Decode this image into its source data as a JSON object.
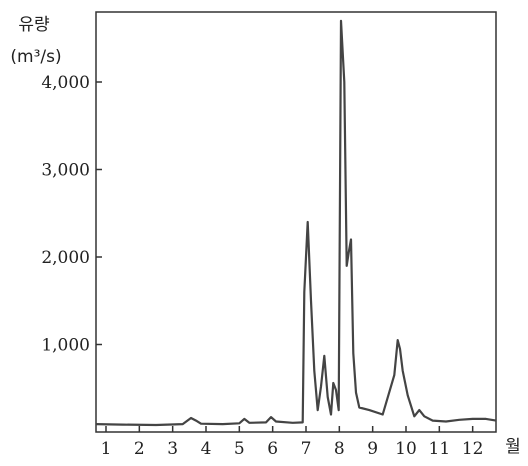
{
  "chart_data": {
    "type": "line",
    "ylabel_line1": "유량",
    "ylabel_line2": "(m³/s)",
    "xlabel": "월",
    "xlim": [
      0.7,
      12.7
    ],
    "ylim": [
      0,
      4800
    ],
    "xticks": [
      1,
      2,
      3,
      4,
      5,
      6,
      7,
      8,
      9,
      10,
      11,
      12
    ],
    "yticks": [
      1000,
      2000,
      3000,
      4000
    ],
    "ytick_labels": [
      "1,000",
      "2,000",
      "3,000",
      "4,000"
    ],
    "grid": false,
    "series": [
      {
        "x": [
          0.7,
          1.5,
          2.5,
          3.3,
          3.55,
          3.7,
          3.85,
          4.5,
          5.0,
          5.15,
          5.3,
          5.8,
          5.95,
          6.1,
          6.6,
          6.9,
          6.95,
          7.05,
          7.15,
          7.25,
          7.35,
          7.45,
          7.55,
          7.65,
          7.75,
          7.82,
          7.9,
          7.98,
          8.05,
          8.15,
          8.22,
          8.28,
          8.35,
          8.42,
          8.5,
          8.6,
          8.9,
          9.3,
          9.65,
          9.75,
          9.82,
          9.9,
          10.05,
          10.25,
          10.4,
          10.55,
          10.8,
          11.2,
          11.6,
          12.0,
          12.4,
          12.7
        ],
        "y": [
          90,
          85,
          80,
          90,
          160,
          130,
          95,
          90,
          100,
          150,
          105,
          110,
          170,
          120,
          105,
          110,
          1600,
          2400,
          1500,
          700,
          250,
          520,
          870,
          400,
          200,
          560,
          480,
          250,
          4700,
          4000,
          1900,
          2050,
          2200,
          900,
          450,
          280,
          250,
          200,
          650,
          1050,
          950,
          700,
          420,
          180,
          250,
          180,
          130,
          120,
          140,
          150,
          150,
          130
        ]
      }
    ]
  }
}
